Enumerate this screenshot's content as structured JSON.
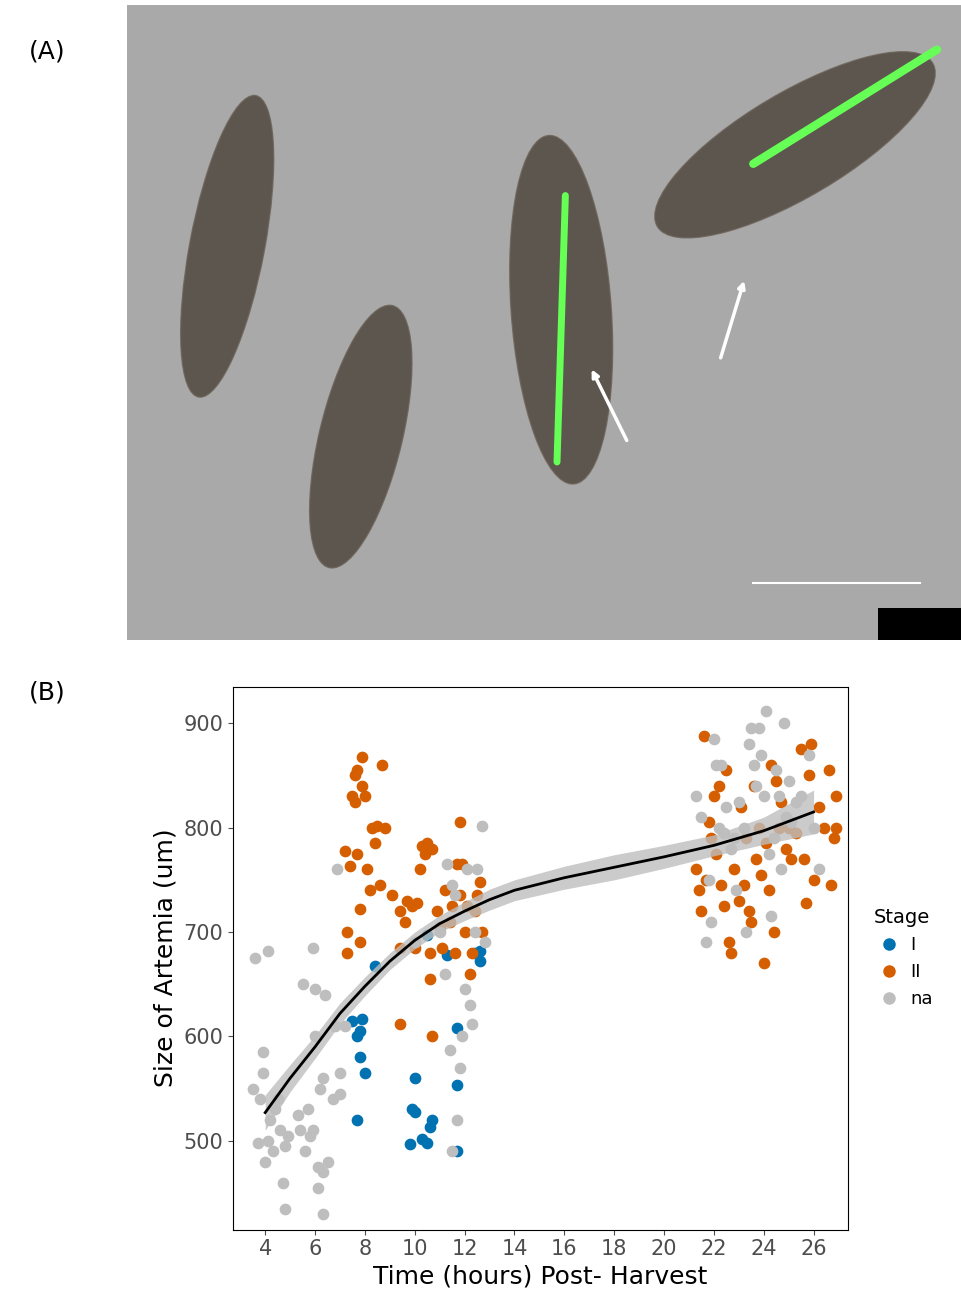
{
  "panel_labels": [
    "(A)",
    "(B)"
  ],
  "chart_data": {
    "type": "scatter",
    "x_label": "Time (hours) Post- Harvest",
    "y_label": "Size of Artemia (um)",
    "legend_title": "Stage",
    "legend": "right",
    "xlim": [
      2.7,
      27.4
    ],
    "xticks": [
      4,
      6,
      8,
      10,
      12,
      14,
      16,
      18,
      20,
      22,
      24,
      26
    ],
    "ylim": [
      415,
      935
    ],
    "yticks": [
      500,
      600,
      700,
      800,
      900
    ],
    "grid": false,
    "series": [
      {
        "name": "I",
        "color": "#0072B2",
        "marker": "o",
        "x": [
          7.5,
          7.7,
          7.8,
          7.8,
          7.9,
          7.7,
          8.0,
          8.4,
          9.8,
          9.9,
          10.0,
          10.0,
          10.3,
          10.5,
          10.6,
          10.7,
          10.5,
          11.3,
          11.7,
          11.7,
          11.7,
          12.6,
          12.6,
          12.4
        ],
        "values": [
          615,
          600,
          605,
          580,
          617,
          520,
          565,
          667,
          497,
          530,
          560,
          528,
          502,
          498,
          513,
          520,
          697,
          678,
          553,
          608,
          490,
          672,
          682,
          680
        ]
      },
      {
        "name": "II",
        "color": "#D55E00",
        "marker": "o",
        "x": [
          7.2,
          7.3,
          7.3,
          7.4,
          7.5,
          7.6,
          7.6,
          7.7,
          7.7,
          7.8,
          7.8,
          7.9,
          7.9,
          8.0,
          8.1,
          8.2,
          8.3,
          8.4,
          8.5,
          8.6,
          8.7,
          8.8,
          9.1,
          9.4,
          9.4,
          9.4,
          9.6,
          9.7,
          9.9,
          10.0,
          10.1,
          10.2,
          10.3,
          10.4,
          10.5,
          10.6,
          10.6,
          10.7,
          10.7,
          10.9,
          11.0,
          11.1,
          11.2,
          11.4,
          11.5,
          11.6,
          11.7,
          11.8,
          11.8,
          11.9,
          12.0,
          12.1,
          12.2,
          12.3,
          12.4,
          12.5,
          12.6,
          12.7,
          21.3,
          21.4,
          21.5,
          21.6,
          21.7,
          21.8,
          21.9,
          22.0,
          22.1,
          22.2,
          22.3,
          22.4,
          22.5,
          22.6,
          22.7,
          22.8,
          23.0,
          23.1,
          23.2,
          23.3,
          23.4,
          23.5,
          23.6,
          23.7,
          23.8,
          23.9,
          24.0,
          24.1,
          24.2,
          24.3,
          24.4,
          24.5,
          24.6,
          24.7,
          24.9,
          25.0,
          25.1,
          25.3,
          25.5,
          25.6,
          25.7,
          25.8,
          25.9,
          26.0,
          26.2,
          26.4,
          26.6,
          26.7,
          26.8,
          26.9,
          26.9
        ],
        "values": [
          778,
          700,
          680,
          763,
          830,
          850,
          825,
          855,
          775,
          722,
          690,
          840,
          868,
          830,
          760,
          740,
          800,
          785,
          802,
          745,
          860,
          800,
          735,
          720,
          685,
          612,
          710,
          730,
          725,
          685,
          728,
          760,
          782,
          775,
          785,
          680,
          655,
          780,
          600,
          720,
          705,
          685,
          740,
          710,
          725,
          680,
          765,
          735,
          805,
          765,
          700,
          725,
          660,
          680,
          720,
          735,
          748,
          700,
          760,
          740,
          720,
          888,
          750,
          805,
          790,
          830,
          775,
          840,
          745,
          725,
          855,
          690,
          680,
          760,
          730,
          820,
          745,
          790,
          720,
          710,
          840,
          770,
          800,
          755,
          670,
          785,
          740,
          860,
          700,
          845,
          800,
          825,
          780,
          800,
          770,
          795,
          875,
          770,
          728,
          850,
          880,
          750,
          820,
          800,
          855,
          745,
          790,
          830,
          800
        ]
      },
      {
        "name": "na",
        "color": "#BEBEBE",
        "marker": "o",
        "x": [
          3.5,
          3.6,
          3.7,
          3.8,
          3.9,
          3.9,
          4.0,
          4.1,
          4.1,
          4.2,
          4.3,
          4.4,
          4.5,
          4.6,
          4.7,
          4.8,
          4.8,
          4.9,
          5.3,
          5.4,
          5.5,
          5.6,
          5.7,
          5.8,
          5.9,
          5.9,
          6.0,
          6.0,
          6.1,
          6.1,
          6.2,
          6.3,
          6.3,
          6.3,
          6.4,
          6.5,
          6.7,
          6.8,
          7.0,
          7.0,
          6.9,
          7.2,
          10.0,
          11.0,
          11.3,
          11.5,
          11.6,
          11.5,
          11.7,
          11.8,
          11.9,
          12.0,
          12.1,
          12.2,
          12.3,
          12.4,
          12.5,
          12.7,
          12.8,
          11.4,
          11.2,
          21.3,
          21.5,
          21.7,
          21.8,
          21.9,
          22.0,
          22.1,
          22.2,
          22.3,
          22.5,
          22.7,
          22.8,
          22.9,
          23.0,
          23.2,
          23.4,
          23.5,
          23.6,
          23.7,
          23.8,
          23.9,
          24.0,
          24.1,
          24.2,
          24.3,
          24.4,
          24.5,
          24.6,
          24.7,
          24.9,
          25.1,
          25.3,
          25.5,
          25.8,
          26.0,
          26.2,
          23.3,
          22.4,
          24.8,
          25.0
        ],
        "values": [
          550,
          675,
          498,
          540,
          585,
          565,
          480,
          500,
          682,
          520,
          490,
          530,
          540,
          510,
          460,
          435,
          495,
          505,
          525,
          510,
          650,
          490,
          530,
          505,
          685,
          510,
          600,
          645,
          475,
          455,
          550,
          470,
          430,
          560,
          640,
          480,
          540,
          610,
          545,
          565,
          760,
          610,
          690,
          700,
          765,
          745,
          735,
          490,
          520,
          570,
          600,
          645,
          760,
          630,
          612,
          700,
          760,
          802,
          690,
          587,
          660,
          830,
          810,
          690,
          750,
          710,
          885,
          860,
          800,
          860,
          820,
          780,
          790,
          740,
          825,
          800,
          880,
          895,
          860,
          840,
          895,
          870,
          830,
          912,
          775,
          715,
          790,
          855,
          830,
          760,
          810,
          805,
          825,
          830,
          870,
          800,
          760,
          700,
          795,
          900,
          845
        ]
      }
    ],
    "fit": {
      "type": "line",
      "color": "#000000",
      "x": [
        4,
        5,
        6,
        7,
        8,
        9,
        10,
        11,
        12,
        13,
        14,
        16,
        18,
        20,
        22,
        24,
        26
      ],
      "values": [
        527,
        560,
        590,
        622,
        648,
        672,
        692,
        708,
        720,
        731,
        740,
        752,
        762,
        772,
        783,
        797,
        815
      ],
      "lower": [
        510,
        547,
        579,
        612,
        639,
        664,
        684,
        700,
        711,
        721,
        730,
        741,
        750,
        761,
        773,
        784,
        794
      ],
      "upper": [
        544,
        573,
        601,
        632,
        657,
        680,
        700,
        716,
        729,
        741,
        750,
        763,
        774,
        783,
        793,
        810,
        836
      ]
    }
  }
}
